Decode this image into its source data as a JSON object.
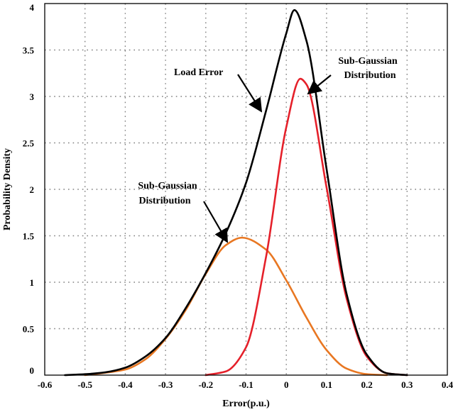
{
  "chart_data": {
    "type": "line",
    "title": "",
    "xlabel": "Error(p.u.)",
    "ylabel": "Probability Density",
    "xlim": [
      -0.6,
      0.4
    ],
    "ylim": [
      0,
      4
    ],
    "grid": true,
    "x_ticks": [
      -0.6,
      -0.5,
      -0.4,
      -0.3,
      -0.2,
      -0.1,
      0,
      0.1,
      0.2,
      0.3,
      0.4
    ],
    "x_tick_labels": [
      "-0.6",
      "-0.5",
      "-0.4",
      "-0.3",
      "-0.2",
      "-0.1",
      "0",
      "0.1",
      "0.2",
      "0.3",
      "0.4"
    ],
    "y_ticks": [
      0,
      0.5,
      1,
      1.5,
      2,
      2.5,
      3,
      3.5,
      4
    ],
    "y_tick_labels": [
      "0",
      "0.5",
      "1",
      "1.5",
      "2",
      "2.5",
      "3",
      "3.5",
      "4"
    ],
    "series": [
      {
        "name": "Load Error",
        "color": "#000000",
        "x": [
          -0.55,
          -0.5,
          -0.45,
          -0.4,
          -0.35,
          -0.3,
          -0.25,
          -0.2,
          -0.15,
          -0.1,
          -0.05,
          0,
          0.02,
          0.05,
          0.1,
          0.15,
          0.2,
          0.25,
          0.3
        ],
        "y": [
          0,
          0.01,
          0.03,
          0.08,
          0.2,
          0.4,
          0.72,
          1.1,
          1.53,
          2.07,
          2.85,
          3.68,
          3.93,
          3.6,
          2.22,
          0.87,
          0.22,
          0.02,
          0
        ]
      },
      {
        "name": "Sub-Gaussian Distribution",
        "color": "#e5202a",
        "x": [
          -0.2,
          -0.15,
          -0.1,
          -0.05,
          0,
          0.035,
          0.05,
          0.1,
          0.15,
          0.2,
          0.25,
          0.3
        ],
        "y": [
          0,
          0.04,
          0.3,
          1.28,
          2.67,
          3.19,
          3.13,
          2.02,
          0.82,
          0.2,
          0.02,
          0
        ]
      },
      {
        "name": "Sub-Gaussian Distribution",
        "color": "#e87722",
        "x": [
          -0.5,
          -0.4,
          -0.35,
          -0.3,
          -0.25,
          -0.2,
          -0.15,
          -0.11,
          -0.05,
          0,
          0.05,
          0.1,
          0.15,
          0.2,
          0.25
        ],
        "y": [
          0,
          0.06,
          0.17,
          0.39,
          0.7,
          1.09,
          1.4,
          1.48,
          1.35,
          1.02,
          0.62,
          0.27,
          0.07,
          0.01,
          0
        ]
      }
    ],
    "annotations": [
      {
        "lines": [
          "Load Error"
        ],
        "target": [
          -0.05,
          2.85
        ]
      },
      {
        "lines": [
          "Sub-Gaussian",
          "Distribution"
        ],
        "target": [
          0.055,
          3.05
        ]
      },
      {
        "lines": [
          "Sub-Gaussian",
          "Distribution"
        ],
        "target": [
          -0.15,
          1.4
        ]
      }
    ]
  }
}
